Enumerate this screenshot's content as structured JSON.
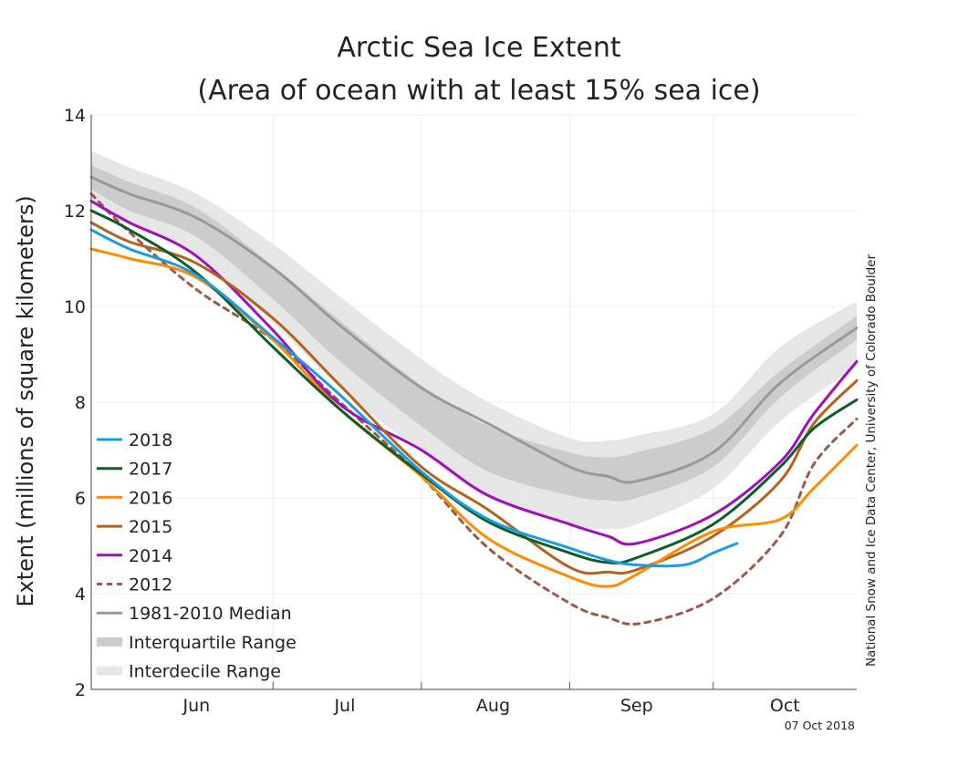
{
  "chart_data": {
    "type": "line",
    "title_line1": "Arctic Sea Ice Extent",
    "title_line2": "(Area of ocean with at least 15% sea ice)",
    "ylabel": "Extent (millions of square kilometers)",
    "ylim": [
      2,
      14
    ],
    "yticks": [
      "2",
      "4",
      "6",
      "8",
      "10",
      "12",
      "14"
    ],
    "xlim": [
      "2018-05-24",
      "2018-10-31"
    ],
    "xtick_labels": [
      {
        "label": "Jun",
        "center": "2018-06-15"
      },
      {
        "label": "Jul",
        "center": "2018-07-16"
      },
      {
        "label": "Aug",
        "center": "2018-08-16"
      },
      {
        "label": "Sep",
        "center": "2018-09-15"
      },
      {
        "label": "Oct",
        "center": "2018-10-16"
      }
    ],
    "month_dividers": [
      "2018-07-01",
      "2018-08-01",
      "2018-09-01",
      "2018-10-01"
    ],
    "credit": "National Snow and Ice Data Center, University of Colorado Boulder",
    "date_stamp": "07 Oct 2018",
    "x": [
      "2018-05-24",
      "2018-06-01",
      "2018-06-15",
      "2018-07-01",
      "2018-07-15",
      "2018-08-01",
      "2018-08-15",
      "2018-09-01",
      "2018-09-09",
      "2018-09-15",
      "2018-10-01",
      "2018-10-15",
      "2018-10-31"
    ],
    "interdecile": {
      "name": "Interdecile Range",
      "color": "#e6e6e6",
      "upper": [
        13.25,
        12.9,
        12.35,
        11.3,
        10.2,
        8.9,
        8.0,
        7.25,
        7.2,
        7.3,
        7.75,
        9.15,
        10.1
      ],
      "lower": [
        12.15,
        11.7,
        11.05,
        9.65,
        8.3,
        6.95,
        6.0,
        5.45,
        5.35,
        5.45,
        6.2,
        7.6,
        8.75
      ]
    },
    "interquartile": {
      "name": "Interquartile Range",
      "color": "#cccccc",
      "upper": [
        12.95,
        12.6,
        12.05,
        10.85,
        9.7,
        8.35,
        7.5,
        6.95,
        6.85,
        6.95,
        7.45,
        8.65,
        9.8
      ],
      "lower": [
        12.45,
        12.0,
        11.45,
        10.15,
        8.85,
        7.5,
        6.55,
        6.05,
        5.95,
        6.0,
        6.65,
        8.1,
        9.3
      ]
    },
    "series": [
      {
        "name": "1981-2010 Median",
        "color": "#999999",
        "dash": false,
        "width": 3,
        "points": [
          [
            "2018-05-24",
            12.7
          ],
          [
            "2018-06-01",
            12.35
          ],
          [
            "2018-06-15",
            11.85
          ],
          [
            "2018-07-01",
            10.8
          ],
          [
            "2018-07-15",
            9.6
          ],
          [
            "2018-08-01",
            8.3
          ],
          [
            "2018-08-15",
            7.55
          ],
          [
            "2018-09-01",
            6.65
          ],
          [
            "2018-09-09",
            6.45
          ],
          [
            "2018-09-15",
            6.35
          ],
          [
            "2018-10-01",
            6.95
          ],
          [
            "2018-10-15",
            8.4
          ],
          [
            "2018-10-31",
            9.55
          ]
        ]
      },
      {
        "name": "2012",
        "color": "#9c5a4a",
        "dash": true,
        "width": 3,
        "points": [
          [
            "2018-05-24",
            12.35
          ],
          [
            "2018-06-01",
            11.55
          ],
          [
            "2018-06-15",
            10.35
          ],
          [
            "2018-07-01",
            9.3
          ],
          [
            "2018-07-15",
            8.0
          ],
          [
            "2018-08-01",
            6.45
          ],
          [
            "2018-08-15",
            4.95
          ],
          [
            "2018-09-01",
            3.8
          ],
          [
            "2018-09-09",
            3.5
          ],
          [
            "2018-09-16",
            3.38
          ],
          [
            "2018-10-01",
            3.9
          ],
          [
            "2018-10-15",
            5.2
          ],
          [
            "2018-10-22",
            6.7
          ],
          [
            "2018-10-31",
            7.65
          ]
        ]
      },
      {
        "name": "2014",
        "color": "#a010b8",
        "dash": false,
        "width": 3,
        "points": [
          [
            "2018-05-24",
            12.2
          ],
          [
            "2018-06-01",
            11.75
          ],
          [
            "2018-06-15",
            11.05
          ],
          [
            "2018-07-01",
            9.5
          ],
          [
            "2018-07-15",
            7.95
          ],
          [
            "2018-08-01",
            7.0
          ],
          [
            "2018-08-15",
            6.05
          ],
          [
            "2018-09-01",
            5.45
          ],
          [
            "2018-09-09",
            5.2
          ],
          [
            "2018-09-15",
            5.05
          ],
          [
            "2018-10-01",
            5.65
          ],
          [
            "2018-10-15",
            6.75
          ],
          [
            "2018-10-22",
            7.75
          ],
          [
            "2018-10-31",
            8.85
          ]
        ]
      },
      {
        "name": "2015",
        "color": "#b5621e",
        "dash": false,
        "width": 3,
        "points": [
          [
            "2018-05-24",
            11.75
          ],
          [
            "2018-06-01",
            11.35
          ],
          [
            "2018-06-15",
            10.9
          ],
          [
            "2018-07-01",
            9.75
          ],
          [
            "2018-07-15",
            8.35
          ],
          [
            "2018-08-01",
            6.65
          ],
          [
            "2018-08-15",
            5.75
          ],
          [
            "2018-09-01",
            4.55
          ],
          [
            "2018-09-09",
            4.45
          ],
          [
            "2018-09-15",
            4.5
          ],
          [
            "2018-10-01",
            5.2
          ],
          [
            "2018-10-15",
            6.35
          ],
          [
            "2018-10-22",
            7.55
          ],
          [
            "2018-10-31",
            8.45
          ]
        ]
      },
      {
        "name": "2016",
        "color": "#ff8c00",
        "dash": false,
        "width": 3,
        "points": [
          [
            "2018-05-24",
            11.2
          ],
          [
            "2018-06-01",
            11.0
          ],
          [
            "2018-06-15",
            10.6
          ],
          [
            "2018-07-01",
            9.3
          ],
          [
            "2018-07-15",
            7.85
          ],
          [
            "2018-08-01",
            6.45
          ],
          [
            "2018-08-15",
            5.15
          ],
          [
            "2018-09-01",
            4.35
          ],
          [
            "2018-09-09",
            4.15
          ],
          [
            "2018-09-15",
            4.4
          ],
          [
            "2018-10-01",
            5.3
          ],
          [
            "2018-10-15",
            5.55
          ],
          [
            "2018-10-22",
            6.2
          ],
          [
            "2018-10-31",
            7.1
          ]
        ]
      },
      {
        "name": "2017",
        "color": "#0b5d2a",
        "dash": false,
        "width": 3,
        "points": [
          [
            "2018-05-24",
            12.0
          ],
          [
            "2018-06-01",
            11.6
          ],
          [
            "2018-06-15",
            10.7
          ],
          [
            "2018-07-01",
            9.15
          ],
          [
            "2018-07-15",
            7.85
          ],
          [
            "2018-08-01",
            6.5
          ],
          [
            "2018-08-15",
            5.5
          ],
          [
            "2018-09-01",
            4.85
          ],
          [
            "2018-09-09",
            4.65
          ],
          [
            "2018-09-15",
            4.75
          ],
          [
            "2018-10-01",
            5.45
          ],
          [
            "2018-10-15",
            6.65
          ],
          [
            "2018-10-22",
            7.45
          ],
          [
            "2018-10-31",
            8.05
          ]
        ]
      },
      {
        "name": "2018",
        "color": "#1a9be8",
        "dash": false,
        "width": 3,
        "points": [
          [
            "2018-05-24",
            11.6
          ],
          [
            "2018-06-01",
            11.2
          ],
          [
            "2018-06-15",
            10.65
          ],
          [
            "2018-07-01",
            9.35
          ],
          [
            "2018-07-15",
            8.15
          ],
          [
            "2018-08-01",
            6.55
          ],
          [
            "2018-08-15",
            5.55
          ],
          [
            "2018-09-01",
            4.95
          ],
          [
            "2018-09-09",
            4.7
          ],
          [
            "2018-09-15",
            4.6
          ],
          [
            "2018-09-25",
            4.6
          ],
          [
            "2018-10-01",
            4.85
          ],
          [
            "2018-10-06",
            5.05
          ]
        ]
      }
    ],
    "legend": [
      {
        "label": "2018",
        "kind": "line",
        "color": "#1a9be8"
      },
      {
        "label": "2017",
        "kind": "line",
        "color": "#0b5d2a"
      },
      {
        "label": "2016",
        "kind": "line",
        "color": "#ff8c00"
      },
      {
        "label": "2015",
        "kind": "line",
        "color": "#b5621e"
      },
      {
        "label": "2014",
        "kind": "line",
        "color": "#a010b8"
      },
      {
        "label": "2012",
        "kind": "dash",
        "color": "#9c5a4a"
      },
      {
        "label": "1981-2010 Median",
        "kind": "line",
        "color": "#999999"
      },
      {
        "label": "Interquartile Range",
        "kind": "band",
        "color": "#cccccc"
      },
      {
        "label": "Interdecile Range",
        "kind": "band",
        "color": "#e6e6e6"
      }
    ],
    "legend_position": "bottom-left",
    "grid": true
  }
}
